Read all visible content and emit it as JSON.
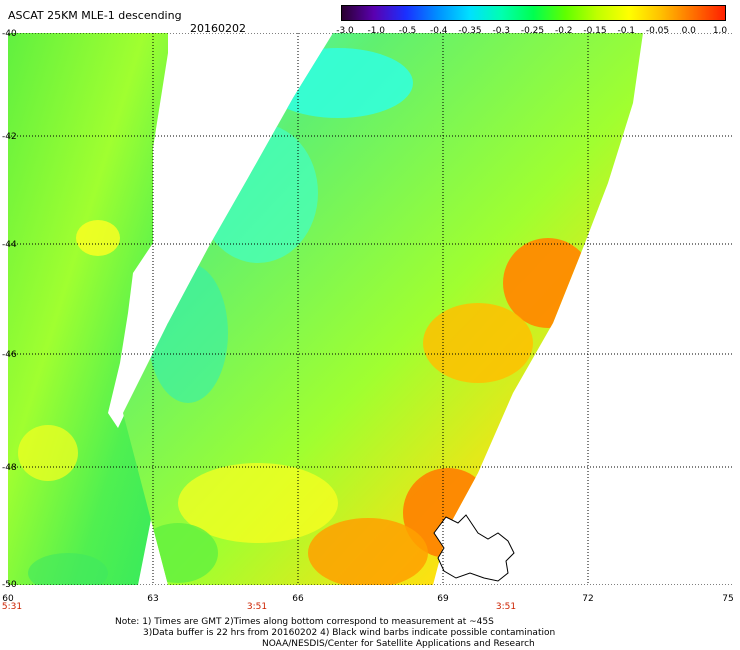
{
  "header": {
    "title": "ASCAT 25KM MLE-1 descending",
    "date": "20160202"
  },
  "colorbar": {
    "labels": [
      "-3.0",
      "-1.0",
      "-0.5",
      "-0.4",
      "-0.35",
      "-0.3",
      "-0.25",
      "-0.2",
      "-0.15",
      "-0.1",
      "-0.05",
      "0.0",
      "1.0"
    ],
    "colors": [
      "#2a0030",
      "#5a00b0",
      "#1a30ff",
      "#0090ff",
      "#00e0ff",
      "#00ffb0",
      "#00ff50",
      "#60ff00",
      "#c0ff00",
      "#ffff00",
      "#ffc000",
      "#ff7000",
      "#ff2000"
    ]
  },
  "map": {
    "lat_labels": [
      "-40",
      "-42",
      "-44",
      "-46",
      "-48",
      "-50"
    ],
    "lon_labels": [
      "60",
      "63",
      "66",
      "69",
      "72",
      "75"
    ],
    "time_labels": [
      "5:31",
      "3:51",
      "3:51"
    ],
    "swath_colors": {
      "cyan": "#40ffe8",
      "green": "#50f050",
      "lightgreen": "#a0ff30",
      "yellow": "#ffff10",
      "orange": "#ffb000",
      "red": "#ff8000"
    }
  },
  "notes": {
    "line1": "Note: 1) Times are GMT 2)Times along bottom correspond to measurement at ~45S",
    "line2": "3)Data buffer is 22 hrs from 20160202 4) Black wind barbs indicate possible contamination",
    "line3": "NOAA/NESDIS/Center for Satellite Applications and Research"
  }
}
